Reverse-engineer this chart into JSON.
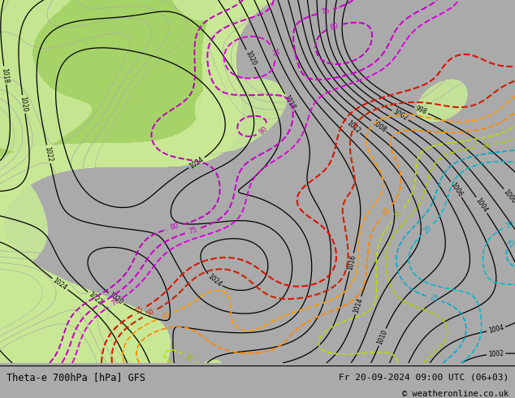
{
  "title_left": "Theta-e 700hPa [hPa] GFS",
  "title_right": "Fr 20-09-2024 09:00 UTC (06+03)",
  "copyright": "© weatheronline.co.uk",
  "fig_width": 6.34,
  "fig_height": 4.9,
  "dpi": 100,
  "bottom_bar_color": "#ffffff",
  "map_light_green": "#c8e896",
  "map_dark_green": "#a0d060",
  "map_gray": "#c8c8c8",
  "map_light_gray": "#dcdcdc"
}
